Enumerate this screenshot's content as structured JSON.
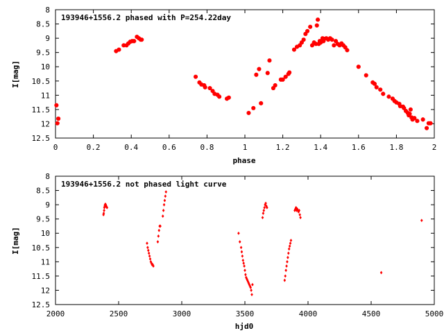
{
  "chart_data": [
    {
      "type": "scatter",
      "title": "193946+1556.2 phased with P=254.22day",
      "xlabel": "phase",
      "ylabel": "I[mag]",
      "xlim": [
        0,
        2
      ],
      "ylim": [
        12.5,
        8
      ],
      "y_inverted": true,
      "x_ticks": [
        0,
        0.2,
        0.4,
        0.6,
        0.8,
        1,
        1.2,
        1.4,
        1.6,
        1.8,
        2
      ],
      "x_tick_labels": [
        "0",
        "0.2",
        "0.4",
        "0.6",
        "0.8",
        "1",
        "1.2",
        "1.4",
        "1.6",
        "1.8",
        "2"
      ],
      "y_ticks": [
        8,
        8.5,
        9,
        9.5,
        10,
        10.5,
        11,
        11.5,
        12,
        12.5
      ],
      "y_tick_labels": [
        "8",
        "8.5",
        "9",
        "9.5",
        "10",
        "10.5",
        "11",
        "11.5",
        "12",
        "12.5"
      ],
      "grid": false,
      "marker_color": "#ff0000",
      "series": [
        {
          "x": [
            0.005,
            0.01,
            0.015,
            0.32,
            0.335,
            0.36,
            0.375,
            0.385,
            0.395,
            0.405,
            0.415,
            0.43,
            0.44,
            0.45,
            0.455,
            0.74,
            0.76,
            0.77,
            0.785,
            0.79,
            0.815,
            0.83,
            0.84,
            0.855,
            0.865,
            0.905,
            0.915,
            1.02,
            1.045,
            1.06,
            1.075,
            1.085,
            1.12,
            1.13,
            1.15,
            1.16,
            1.19,
            1.2,
            1.215,
            1.23,
            1.235,
            1.26,
            1.275,
            1.29,
            1.3,
            1.31,
            1.32,
            1.33,
            1.345,
            1.355,
            1.365,
            1.375,
            1.38,
            1.385,
            1.39,
            1.395,
            1.4,
            1.41,
            1.415,
            1.42,
            1.43,
            1.44,
            1.45,
            1.46,
            1.47,
            1.48,
            1.49,
            1.5,
            1.51,
            1.52,
            1.53,
            1.54,
            1.6,
            1.64,
            1.675,
            1.685,
            1.695,
            1.715,
            1.73,
            1.76,
            1.78,
            1.79,
            1.8,
            1.815,
            1.82,
            1.835,
            1.84,
            1.85,
            1.86,
            1.865,
            1.87,
            1.875,
            1.88,
            1.885,
            1.895,
            1.91,
            1.94,
            1.96,
            1.97,
            1.98
          ],
          "y": [
            11.35,
            11.98,
            11.82,
            9.45,
            9.4,
            9.25,
            9.25,
            9.18,
            9.12,
            9.1,
            9.1,
            8.95,
            9.0,
            9.05,
            9.05,
            10.35,
            10.55,
            10.62,
            10.65,
            10.72,
            10.75,
            10.85,
            10.95,
            10.98,
            11.05,
            11.12,
            11.08,
            11.62,
            11.45,
            10.28,
            10.08,
            11.28,
            10.22,
            9.78,
            10.75,
            10.65,
            10.45,
            10.45,
            10.35,
            10.25,
            10.2,
            9.4,
            9.3,
            9.25,
            9.15,
            9.05,
            8.85,
            8.75,
            8.6,
            9.25,
            9.15,
            9.2,
            8.55,
            8.35,
            9.2,
            9.1,
            9.15,
            9.0,
            9.1,
            9.02,
            9.0,
            9.05,
            9.0,
            9.05,
            9.25,
            9.1,
            9.2,
            9.25,
            9.18,
            9.25,
            9.32,
            9.42,
            10.0,
            10.3,
            10.55,
            10.6,
            10.72,
            10.8,
            10.95,
            11.05,
            11.12,
            11.2,
            11.25,
            11.3,
            11.38,
            11.4,
            11.45,
            11.55,
            11.62,
            11.7,
            11.65,
            11.5,
            11.78,
            11.85,
            11.8,
            11.9,
            11.85,
            12.15,
            11.98,
            11.98
          ]
        }
      ]
    },
    {
      "type": "scatter",
      "title": "193946+1556.2 not phased light curve",
      "xlabel": "hjd0",
      "ylabel": "I[mag]",
      "xlim": [
        2000,
        5000
      ],
      "ylim": [
        12.5,
        8
      ],
      "y_inverted": true,
      "x_ticks": [
        2000,
        2500,
        3000,
        3500,
        4000,
        4500,
        5000
      ],
      "x_tick_labels": [
        "2000",
        "2500",
        "3000",
        "3500",
        "4000",
        "4500",
        "5000"
      ],
      "y_ticks": [
        8,
        8.5,
        9,
        9.5,
        10,
        10.5,
        11,
        11.5,
        12,
        12.5
      ],
      "y_tick_labels": [
        "8",
        "8.5",
        "9",
        "9.5",
        "10",
        "10.5",
        "11",
        "11.5",
        "12",
        "12.5"
      ],
      "grid": false,
      "marker_color": "#ff0000",
      "series": [
        {
          "x": [
            2380,
            2382,
            2385,
            2387,
            2390,
            2392,
            2395,
            2398,
            2400,
            2402,
            2405,
            2408,
            2725,
            2730,
            2735,
            2740,
            2745,
            2750,
            2755,
            2760,
            2765,
            2770,
            2775,
            2810,
            2815,
            2820,
            2825,
            2830,
            2850,
            2855,
            2860,
            2865,
            2870,
            2875,
            3450,
            3460,
            3470,
            3475,
            3480,
            3485,
            3490,
            3495,
            3500,
            3505,
            3510,
            3515,
            3520,
            3525,
            3530,
            3535,
            3540,
            3545,
            3550,
            3555,
            3560,
            3640,
            3645,
            3650,
            3655,
            3660,
            3665,
            3670,
            3675,
            3815,
            3820,
            3825,
            3830,
            3835,
            3840,
            3845,
            3850,
            3855,
            3860,
            3865,
            3895,
            3900,
            3905,
            3910,
            3915,
            3920,
            3925,
            3930,
            3935,
            3940,
            4580,
            4900
          ],
          "y": [
            9.35,
            9.3,
            9.2,
            9.1,
            9.05,
            9.0,
            8.98,
            9.0,
            9.05,
            9.05,
            9.08,
            9.1,
            10.35,
            10.5,
            10.6,
            10.7,
            10.8,
            10.9,
            11.0,
            11.05,
            11.1,
            11.1,
            11.15,
            10.3,
            10.1,
            9.9,
            9.75,
            9.75,
            9.4,
            9.2,
            9.0,
            8.85,
            8.7,
            8.55,
            10.0,
            10.3,
            10.5,
            10.65,
            10.8,
            10.95,
            11.05,
            11.15,
            11.3,
            11.45,
            11.55,
            11.6,
            11.65,
            11.7,
            11.75,
            11.8,
            11.85,
            11.9,
            12.0,
            12.15,
            11.8,
            9.45,
            9.3,
            9.2,
            9.1,
            9.0,
            8.95,
            9.05,
            9.1,
            11.65,
            11.5,
            11.3,
            11.15,
            11.0,
            10.85,
            10.7,
            10.55,
            10.45,
            10.35,
            10.25,
            9.2,
            9.15,
            9.1,
            9.2,
            9.15,
            9.2,
            9.25,
            9.2,
            9.35,
            9.45,
            11.38,
            9.55
          ]
        }
      ]
    }
  ]
}
